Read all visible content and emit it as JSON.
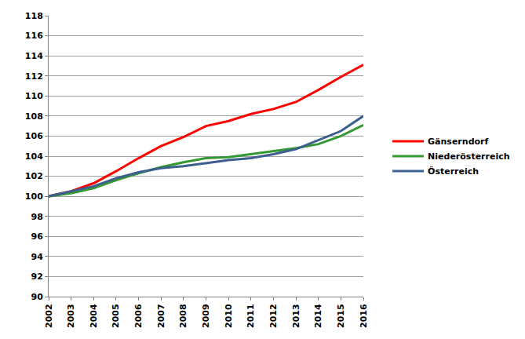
{
  "chart_data": {
    "type": "line",
    "x": [
      2002,
      2003,
      2004,
      2005,
      2006,
      2007,
      2008,
      2009,
      2010,
      2011,
      2012,
      2013,
      2014,
      2015,
      2016
    ],
    "series": [
      {
        "name": "Gänserndorf",
        "color": "#ff0000",
        "values": [
          100,
          100.5,
          101.3,
          102.5,
          103.8,
          105.0,
          105.9,
          107.0,
          107.5,
          108.2,
          108.7,
          109.4,
          110.6,
          111.9,
          113.1
        ]
      },
      {
        "name": "Niederösterreich",
        "color": "#339933",
        "values": [
          100,
          100.3,
          100.8,
          101.6,
          102.3,
          102.9,
          103.4,
          103.8,
          103.9,
          104.2,
          104.5,
          104.8,
          105.2,
          106.0,
          107.1
        ]
      },
      {
        "name": "Österreich",
        "color": "#3d5f8f",
        "values": [
          100,
          100.5,
          101.0,
          101.8,
          102.4,
          102.8,
          103.0,
          103.3,
          103.6,
          103.8,
          104.2,
          104.7,
          105.6,
          106.5,
          108.0
        ]
      }
    ],
    "xlim": [
      2002,
      2016
    ],
    "xticks": [
      2002,
      2003,
      2004,
      2005,
      2006,
      2007,
      2008,
      2009,
      2010,
      2011,
      2012,
      2013,
      2014,
      2015,
      2016
    ],
    "ylim": [
      90,
      118
    ],
    "yticks": [
      90,
      92,
      94,
      96,
      98,
      100,
      102,
      104,
      106,
      108,
      110,
      112,
      114,
      116,
      118
    ],
    "grid": true,
    "legend": "right"
  }
}
